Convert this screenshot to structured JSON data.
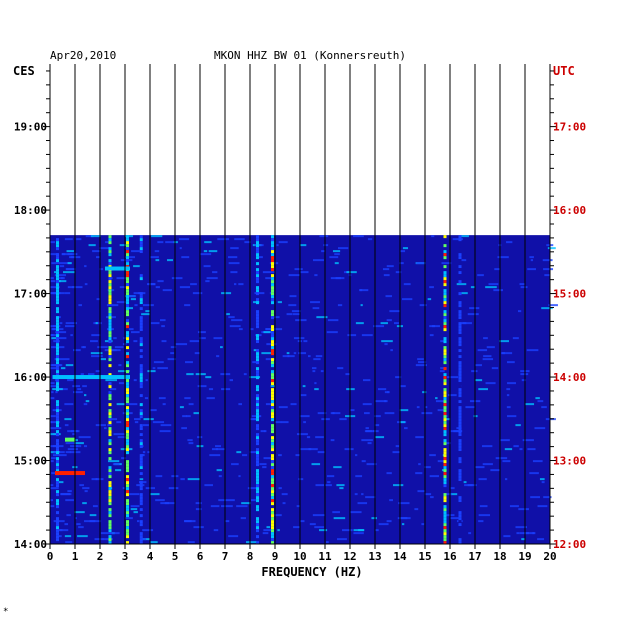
{
  "header": {
    "date": "Apr20,2010",
    "title": "MKON HHZ BW 01 (Konnersreuth)"
  },
  "chart_data": {
    "type": "heatmap",
    "xlabel": "FREQUENCY (HZ)",
    "xlim": [
      0,
      20
    ],
    "x_ticks": [
      "0",
      "1",
      "2",
      "3",
      "4",
      "5",
      "6",
      "7",
      "8",
      "9",
      "10",
      "11",
      "12",
      "13",
      "14",
      "15",
      "16",
      "17",
      "18",
      "19",
      "20"
    ],
    "left_axis": {
      "label": "CES",
      "label_color": "#000000",
      "ylim_hours": [
        14.0,
        19.75
      ],
      "ticks": [
        {
          "hour": 14,
          "label": "14:00"
        },
        {
          "hour": 15,
          "label": "15:00"
        },
        {
          "hour": 16,
          "label": "16:00"
        },
        {
          "hour": 17,
          "label": "17:00"
        },
        {
          "hour": 18,
          "label": "18:00"
        },
        {
          "hour": 19,
          "label": "19:00"
        }
      ]
    },
    "right_axis": {
      "label": "UTC",
      "label_color": "#cc0000",
      "ticks": [
        {
          "hour": 12,
          "label": "12:00"
        },
        {
          "hour": 13,
          "label": "13:00"
        },
        {
          "hour": 14,
          "label": "14:00"
        },
        {
          "hour": 15,
          "label": "15:00"
        },
        {
          "hour": 16,
          "label": "16:00"
        },
        {
          "hour": 17,
          "label": "17:00"
        }
      ]
    },
    "data_end_hour_ces": 17.7,
    "background_color": "#1010a8",
    "colormap": [
      "#1010a8",
      "#1a40ff",
      "#00c0ff",
      "#60ff60",
      "#ffff00",
      "#ff2000"
    ],
    "frequency_lines": [
      {
        "hz": 0.3,
        "strength": 0.45
      },
      {
        "hz": 2.4,
        "strength": 0.75
      },
      {
        "hz": 3.1,
        "strength": 0.8
      },
      {
        "hz": 3.65,
        "strength": 0.35
      },
      {
        "hz": 8.3,
        "strength": 0.45
      },
      {
        "hz": 8.9,
        "strength": 0.8
      },
      {
        "hz": 15.8,
        "strength": 0.9
      },
      {
        "hz": 16.4,
        "strength": 0.3
      }
    ],
    "events": [
      {
        "hour": 14.85,
        "hz_from": 0.2,
        "hz_to": 1.4,
        "color": "#ff2000"
      },
      {
        "hour": 15.25,
        "hz_from": 0.6,
        "hz_to": 1.0,
        "color": "#60ff60"
      },
      {
        "hour": 16.0,
        "hz_from": 0.1,
        "hz_to": 3.2,
        "color": "#00c0ff"
      },
      {
        "hour": 17.3,
        "hz_from": 2.2,
        "hz_to": 3.2,
        "color": "#00c0ff"
      }
    ]
  },
  "footnote": "*"
}
